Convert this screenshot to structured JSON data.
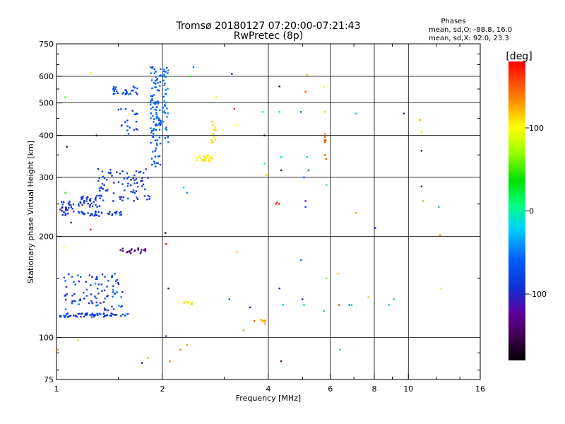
{
  "chart_data": {
    "type": "scatter",
    "title": "Tromsø 20180127 07:20:00-07:21:43",
    "subtitle": "RwPretec (8p)",
    "xlabel": "Frequency [MHz]",
    "ylabel": "Stationary phase Virtual Height [km]",
    "x_scale": "log",
    "y_scale": "log",
    "xlim": [
      1,
      16
    ],
    "ylim": [
      75,
      750
    ],
    "x_ticks": [
      1,
      2,
      4,
      6,
      8,
      10,
      16
    ],
    "y_ticks": [
      75,
      100,
      200,
      300,
      400,
      500,
      600,
      750
    ],
    "grid": true,
    "stats": {
      "heading": "Phases",
      "line_o": "mean, sd,O: -88.8, 16.0",
      "line_x": "mean, sd,X:  92.0, 23.3"
    },
    "colorbar": {
      "label": "[deg]",
      "range": [
        -180,
        180
      ],
      "ticks": [
        100,
        0,
        -100
      ]
    },
    "clusters": [
      {
        "fmin": 1.02,
        "fmax": 1.12,
        "hmin": 230,
        "hmax": 255,
        "n": 30,
        "phase": -110,
        "jitter": 12
      },
      {
        "fmin": 1.15,
        "fmax": 1.55,
        "hmin": 230,
        "hmax": 238,
        "n": 40,
        "phase": -105,
        "jitter": 10
      },
      {
        "fmin": 1.15,
        "fmax": 1.35,
        "hmin": 245,
        "hmax": 265,
        "n": 35,
        "phase": -110,
        "jitter": 12
      },
      {
        "fmin": 1.3,
        "fmax": 1.85,
        "hmin": 255,
        "hmax": 320,
        "n": 80,
        "phase": -105,
        "jitter": 12
      },
      {
        "fmin": 1.85,
        "fmax": 1.98,
        "hmin": 320,
        "hmax": 640,
        "n": 110,
        "phase": -90,
        "jitter": 15
      },
      {
        "fmin": 2.0,
        "fmax": 2.08,
        "hmin": 380,
        "hmax": 640,
        "n": 40,
        "phase": -80,
        "jitter": 15
      },
      {
        "fmin": 1.45,
        "fmax": 1.7,
        "hmin": 530,
        "hmax": 560,
        "n": 30,
        "phase": -100,
        "jitter": 12
      },
      {
        "fmin": 1.5,
        "fmax": 1.7,
        "hmin": 400,
        "hmax": 480,
        "n": 20,
        "phase": -100,
        "jitter": 10
      },
      {
        "fmin": 1.02,
        "fmax": 1.6,
        "hmin": 115,
        "hmax": 118,
        "n": 60,
        "phase": -105,
        "jitter": 10
      },
      {
        "fmin": 1.05,
        "fmax": 1.55,
        "hmin": 120,
        "hmax": 155,
        "n": 90,
        "phase": -100,
        "jitter": 20
      },
      {
        "fmin": 1.5,
        "fmax": 1.8,
        "hmin": 178,
        "hmax": 185,
        "n": 20,
        "phase": -135,
        "jitter": 15
      },
      {
        "fmin": 2.5,
        "fmax": 2.8,
        "hmin": 335,
        "hmax": 350,
        "n": 25,
        "phase": 105,
        "jitter": 8
      },
      {
        "fmin": 2.75,
        "fmax": 2.85,
        "hmin": 380,
        "hmax": 440,
        "n": 12,
        "phase": 110,
        "jitter": 8
      },
      {
        "fmin": 2.3,
        "fmax": 2.45,
        "hmin": 125,
        "hmax": 128,
        "n": 10,
        "phase": 110,
        "jitter": 8
      },
      {
        "fmin": 3.8,
        "fmax": 3.95,
        "hmin": 110,
        "hmax": 113,
        "n": 8,
        "phase": 125,
        "jitter": 8
      },
      {
        "fmin": 5.75,
        "fmax": 5.85,
        "hmin": 330,
        "hmax": 420,
        "n": 8,
        "phase": 150,
        "jitter": 10
      },
      {
        "fmin": 4.2,
        "fmax": 4.3,
        "hmin": 250,
        "hmax": 260,
        "n": 3,
        "phase": 165,
        "jitter": 5
      }
    ],
    "points": [
      [
        1.25,
        615,
        115
      ],
      [
        1.06,
        520,
        45
      ],
      [
        1.07,
        370,
        -150
      ],
      [
        1.3,
        400,
        -150
      ],
      [
        1.25,
        210,
        175
      ],
      [
        1.1,
        220,
        -145
      ],
      [
        1.05,
        185,
        95
      ],
      [
        1.06,
        270,
        30
      ],
      [
        1.01,
        92,
        135
      ],
      [
        1.15,
        98,
        70
      ],
      [
        1.75,
        84,
        -110
      ],
      [
        1.82,
        87,
        125
      ],
      [
        2.1,
        85,
        140
      ],
      [
        2.35,
        95,
        130
      ],
      [
        2.25,
        92,
        145
      ],
      [
        2.05,
        101,
        -100
      ],
      [
        2.05,
        190,
        175
      ],
      [
        2.08,
        140,
        -160
      ],
      [
        2.04,
        205,
        -155
      ],
      [
        2.3,
        280,
        -40
      ],
      [
        2.35,
        270,
        -70
      ],
      [
        2.4,
        600,
        10
      ],
      [
        2.45,
        640,
        -80
      ],
      [
        2.85,
        520,
        110
      ],
      [
        3.15,
        610,
        -140
      ],
      [
        3.2,
        480,
        170
      ],
      [
        3.25,
        430,
        100
      ],
      [
        3.1,
        130,
        -90
      ],
      [
        3.25,
        180,
        120
      ],
      [
        3.4,
        105,
        135
      ],
      [
        3.55,
        123,
        -120
      ],
      [
        3.65,
        112,
        165
      ],
      [
        3.85,
        470,
        -10
      ],
      [
        3.9,
        400,
        -160
      ],
      [
        3.9,
        330,
        -10
      ],
      [
        3.95,
        305,
        115
      ],
      [
        4.3,
        560,
        -160
      ],
      [
        4.3,
        470,
        -20
      ],
      [
        4.35,
        345,
        -20
      ],
      [
        4.35,
        315,
        -140
      ],
      [
        4.3,
        140,
        -120
      ],
      [
        4.35,
        85,
        -140
      ],
      [
        4.4,
        125,
        -50
      ],
      [
        4.95,
        470,
        -80
      ],
      [
        5.1,
        540,
        160
      ],
      [
        5.15,
        605,
        120
      ],
      [
        5.05,
        300,
        -80
      ],
      [
        5.1,
        255,
        -130
      ],
      [
        5.1,
        245,
        -100
      ],
      [
        4.95,
        170,
        -80
      ],
      [
        5.0,
        130,
        -120
      ],
      [
        5.05,
        125,
        -40
      ],
      [
        5.15,
        345,
        -40
      ],
      [
        5.2,
        315,
        -90
      ],
      [
        5.75,
        560,
        90
      ],
      [
        5.8,
        470,
        110
      ],
      [
        5.85,
        285,
        -20
      ],
      [
        5.85,
        150,
        60
      ],
      [
        5.75,
        120,
        -50
      ],
      [
        6.3,
        155,
        120
      ],
      [
        6.35,
        125,
        160
      ],
      [
        6.4,
        92,
        -50
      ],
      [
        6.8,
        125,
        -70
      ],
      [
        6.9,
        125,
        -30
      ],
      [
        7.1,
        465,
        -40
      ],
      [
        7.1,
        235,
        130
      ],
      [
        7.7,
        132,
        120
      ],
      [
        8.05,
        212,
        -120
      ],
      [
        8.8,
        125,
        -50
      ],
      [
        9.1,
        130,
        -50
      ],
      [
        9.7,
        465,
        -120
      ],
      [
        10.8,
        445,
        130
      ],
      [
        10.9,
        410,
        110
      ],
      [
        10.9,
        360,
        -150
      ],
      [
        10.9,
        282,
        -140
      ],
      [
        11.0,
        255,
        130
      ],
      [
        12.2,
        245,
        -50
      ],
      [
        12.3,
        202,
        140
      ],
      [
        12.4,
        140,
        110
      ]
    ]
  }
}
